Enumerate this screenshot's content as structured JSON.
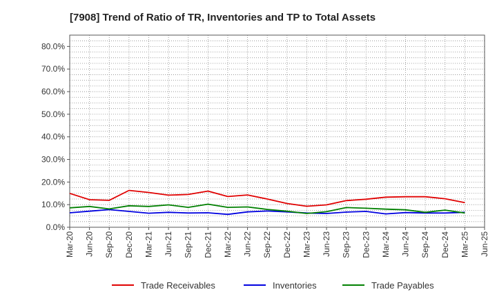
{
  "chart_data": {
    "type": "line",
    "title": "[7908]  Trend of Ratio of TR, Inventories and TP to Total Assets",
    "xlabel": "",
    "ylabel": "",
    "ylim": [
      0,
      85
    ],
    "y_ticks": [
      0,
      10,
      20,
      30,
      40,
      50,
      60,
      70,
      80
    ],
    "y_tick_labels": [
      "0.0%",
      "10.0%",
      "20.0%",
      "30.0%",
      "40.0%",
      "50.0%",
      "60.0%",
      "70.0%",
      "80.0%"
    ],
    "x_tick_labels": [
      "Mar-20",
      "Jun-20",
      "Sep-20",
      "Dec-20",
      "Mar-21",
      "Jun-21",
      "Sep-21",
      "Dec-21",
      "Mar-22",
      "Jun-22",
      "Sep-22",
      "Dec-22",
      "Mar-23",
      "Jun-23",
      "Sep-23",
      "Dec-23",
      "Mar-24",
      "Jun-24",
      "Sep-24",
      "Dec-24",
      "Mar-25",
      "Jun-25"
    ],
    "categories": [
      "Mar-20",
      "Jun-20",
      "Sep-20",
      "Dec-20",
      "Mar-21",
      "Jun-21",
      "Sep-21",
      "Dec-21",
      "Mar-22",
      "Jun-22",
      "Sep-22",
      "Dec-22",
      "Mar-23",
      "Jun-23",
      "Sep-23",
      "Dec-23",
      "Mar-24",
      "Jun-24",
      "Sep-24",
      "Dec-24",
      "Mar-25"
    ],
    "grid": true,
    "legend_position": "bottom",
    "series": [
      {
        "name": "Trade Receivables",
        "color": "#e00000",
        "values": [
          15.0,
          12.2,
          11.9,
          16.3,
          15.4,
          14.2,
          14.5,
          16.0,
          13.6,
          14.3,
          12.5,
          10.5,
          9.3,
          9.9,
          11.8,
          12.4,
          13.3,
          13.5,
          13.5,
          12.6,
          10.9
        ]
      },
      {
        "name": "Inventories",
        "color": "#0000e0",
        "values": [
          6.4,
          7.1,
          7.8,
          7.0,
          6.2,
          6.6,
          6.3,
          6.4,
          5.7,
          6.8,
          7.2,
          6.8,
          6.3,
          6.1,
          6.7,
          7.0,
          5.9,
          6.5,
          6.3,
          6.3,
          6.6
        ]
      },
      {
        "name": "Trade Payables",
        "color": "#008000",
        "values": [
          8.6,
          9.2,
          8.1,
          9.5,
          9.2,
          9.9,
          8.8,
          10.2,
          8.8,
          9.0,
          7.9,
          7.1,
          6.1,
          6.9,
          8.7,
          8.4,
          8.0,
          7.7,
          6.6,
          7.6,
          6.3
        ]
      }
    ]
  }
}
